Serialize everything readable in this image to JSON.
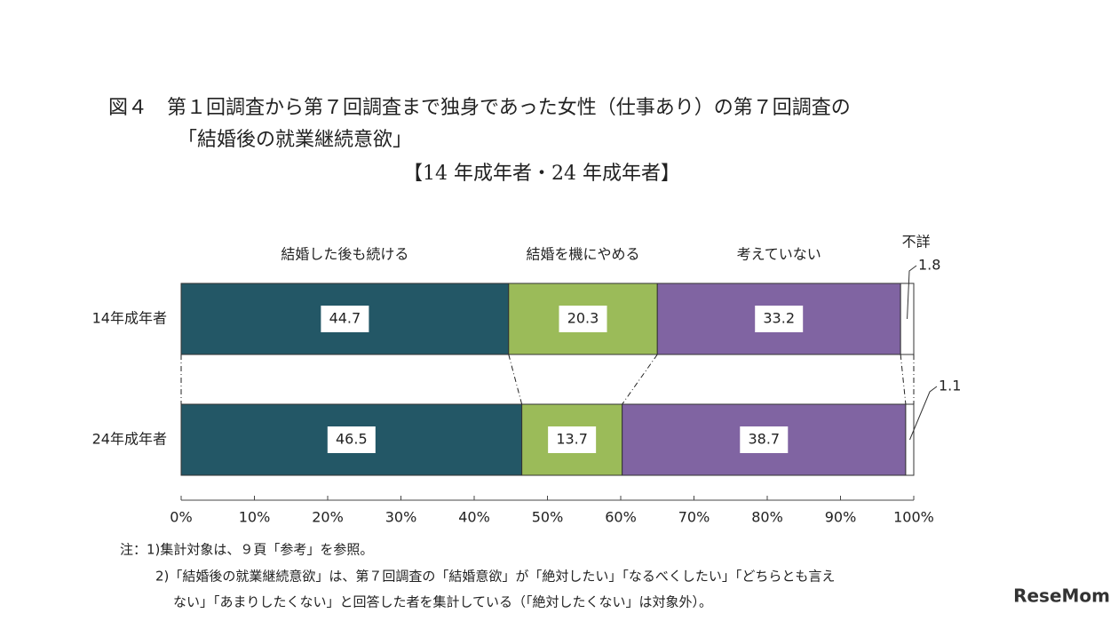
{
  "chart_data": {
    "type": "stacked-bar-horizontal",
    "title": [
      "図４　第１回調査から第７回調査まで独身であった女性（仕事あり）の第７回調査の",
      "「結婚後の就業継続意欲」",
      "【14 年成年者・24 年成年者】"
    ],
    "categories": [
      "14年成年者",
      "24年成年者"
    ],
    "series": [
      {
        "name": "結婚した後も続ける",
        "color": "#235766",
        "values": [
          44.7,
          46.5
        ]
      },
      {
        "name": "結婚を機にやめる",
        "color": "#9bbb59",
        "values": [
          20.3,
          13.7
        ]
      },
      {
        "name": "考えていない",
        "color": "#8064a2",
        "values": [
          33.2,
          38.7
        ]
      },
      {
        "name": "不詳",
        "color": "#ffffff",
        "values": [
          1.8,
          1.1
        ]
      }
    ],
    "xlim": [
      0,
      100
    ],
    "xticks": [
      {
        "value": 0,
        "label": "0%"
      },
      {
        "value": 10,
        "label": "10%"
      },
      {
        "value": 20,
        "label": "20%"
      },
      {
        "value": 30,
        "label": "30%"
      },
      {
        "value": 40,
        "label": "40%"
      },
      {
        "value": 50,
        "label": "50%"
      },
      {
        "value": 60,
        "label": "60%"
      },
      {
        "value": 70,
        "label": "70%"
      },
      {
        "value": 80,
        "label": "80%"
      },
      {
        "value": 90,
        "label": "90%"
      },
      {
        "value": 100,
        "label": "100%"
      }
    ],
    "notes": [
      "注：1)集計対象は、９頁「参考」を参照。",
      "2)「結婚後の就業継続意欲」は、第７回調査の「結婚意欲」が「絶対したい」「なるべくしたい」「どちらとも言え",
      "ない」「あまりしたくない」と回答した者を集計している（「絶対したくない」は対象外）。"
    ],
    "watermark": "ReseMom"
  }
}
